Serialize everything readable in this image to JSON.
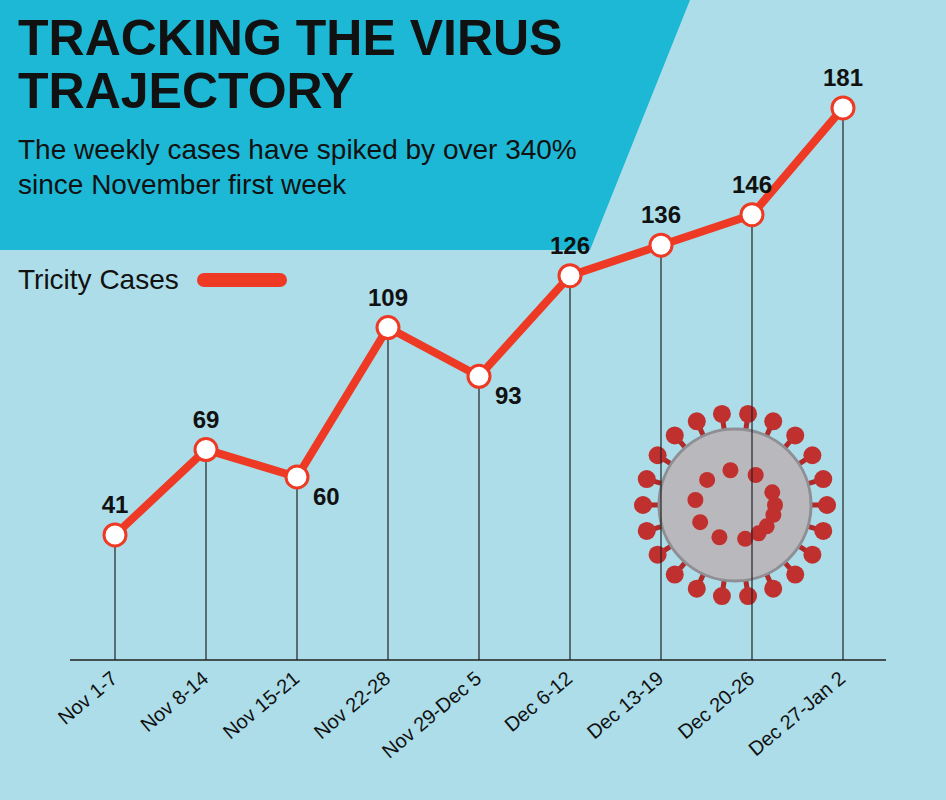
{
  "chart_data": {
    "type": "line",
    "title": "TRACKING THE VIRUS TRAJECTORY",
    "subtitle": "The weekly cases have spiked by over 340% since November first week",
    "categories": [
      "Nov 1-7",
      "Nov 8-14",
      "Nov 15-21",
      "Nov 22-28",
      "Nov 29-Dec 5",
      "Dec 6-12",
      "Dec 13-19",
      "Dec 20-26",
      "Dec 27-Jan 2"
    ],
    "series": [
      {
        "name": "Tricity Cases",
        "color": "#ee3a24",
        "values": [
          41,
          69,
          60,
          109,
          93,
          126,
          136,
          146,
          181
        ],
        "marker": "o"
      }
    ],
    "ylim": [
      0,
      200
    ],
    "grid": false,
    "legend": "upper left",
    "data_labels": true,
    "tick_labels": "x"
  }
}
